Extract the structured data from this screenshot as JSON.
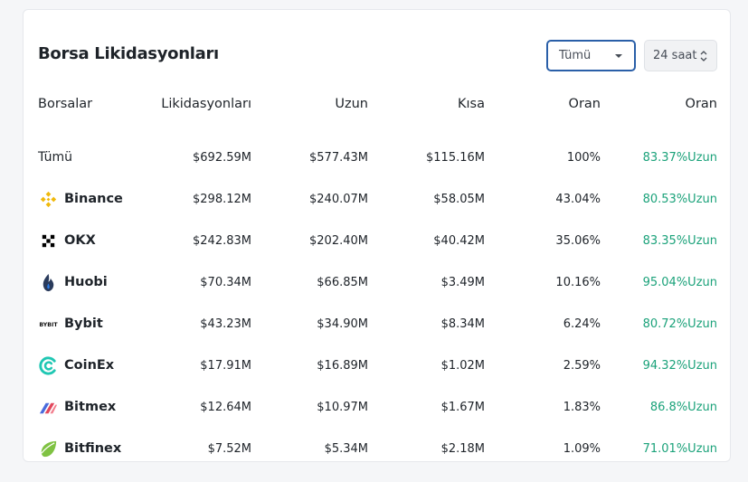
{
  "title": "Borsa Likidasyonları",
  "filters": {
    "exchange": "Tümü",
    "timeframe": "24 saat"
  },
  "columns": [
    "Borsalar",
    "Likidasyonları",
    "Uzun",
    "Kısa",
    "Oran",
    "Oran"
  ],
  "total_row": {
    "name": "Tümü",
    "liquidations": "$692.59M",
    "long": "$577.43M",
    "short": "$115.16M",
    "rate": "100%",
    "ratio": "83.37%Uzun"
  },
  "exchanges": [
    {
      "name": "Binance",
      "icon": "binance-icon",
      "liquidations": "$298.12M",
      "long": "$240.07M",
      "short": "$58.05M",
      "rate": "43.04%",
      "ratio": "80.53%Uzun"
    },
    {
      "name": "OKX",
      "icon": "okx-icon",
      "liquidations": "$242.83M",
      "long": "$202.40M",
      "short": "$40.42M",
      "rate": "35.06%",
      "ratio": "83.35%Uzun"
    },
    {
      "name": "Huobi",
      "icon": "huobi-icon",
      "liquidations": "$70.34M",
      "long": "$66.85M",
      "short": "$3.49M",
      "rate": "10.16%",
      "ratio": "95.04%Uzun"
    },
    {
      "name": "Bybit",
      "icon": "bybit-icon",
      "logo_text": "BYBIT",
      "liquidations": "$43.23M",
      "long": "$34.90M",
      "short": "$8.34M",
      "rate": "6.24%",
      "ratio": "80.72%Uzun"
    },
    {
      "name": "CoinEx",
      "icon": "coinex-icon",
      "liquidations": "$17.91M",
      "long": "$16.89M",
      "short": "$1.02M",
      "rate": "2.59%",
      "ratio": "94.32%Uzun"
    },
    {
      "name": "Bitmex",
      "icon": "bitmex-icon",
      "liquidations": "$12.64M",
      "long": "$10.97M",
      "short": "$1.67M",
      "rate": "1.83%",
      "ratio": "86.8%Uzun"
    },
    {
      "name": "Bitfinex",
      "icon": "bitfinex-icon",
      "liquidations": "$7.52M",
      "long": "$5.34M",
      "short": "$2.18M",
      "rate": "1.09%",
      "ratio": "71.01%Uzun"
    }
  ],
  "colors": {
    "long_green": "#1ba27a",
    "select_border": "#2a5fa8",
    "binance": "#f0b90b",
    "huobi": "#2a3b5c",
    "coinex": "#1fc7b3",
    "bitfinex": "#7fc242"
  }
}
